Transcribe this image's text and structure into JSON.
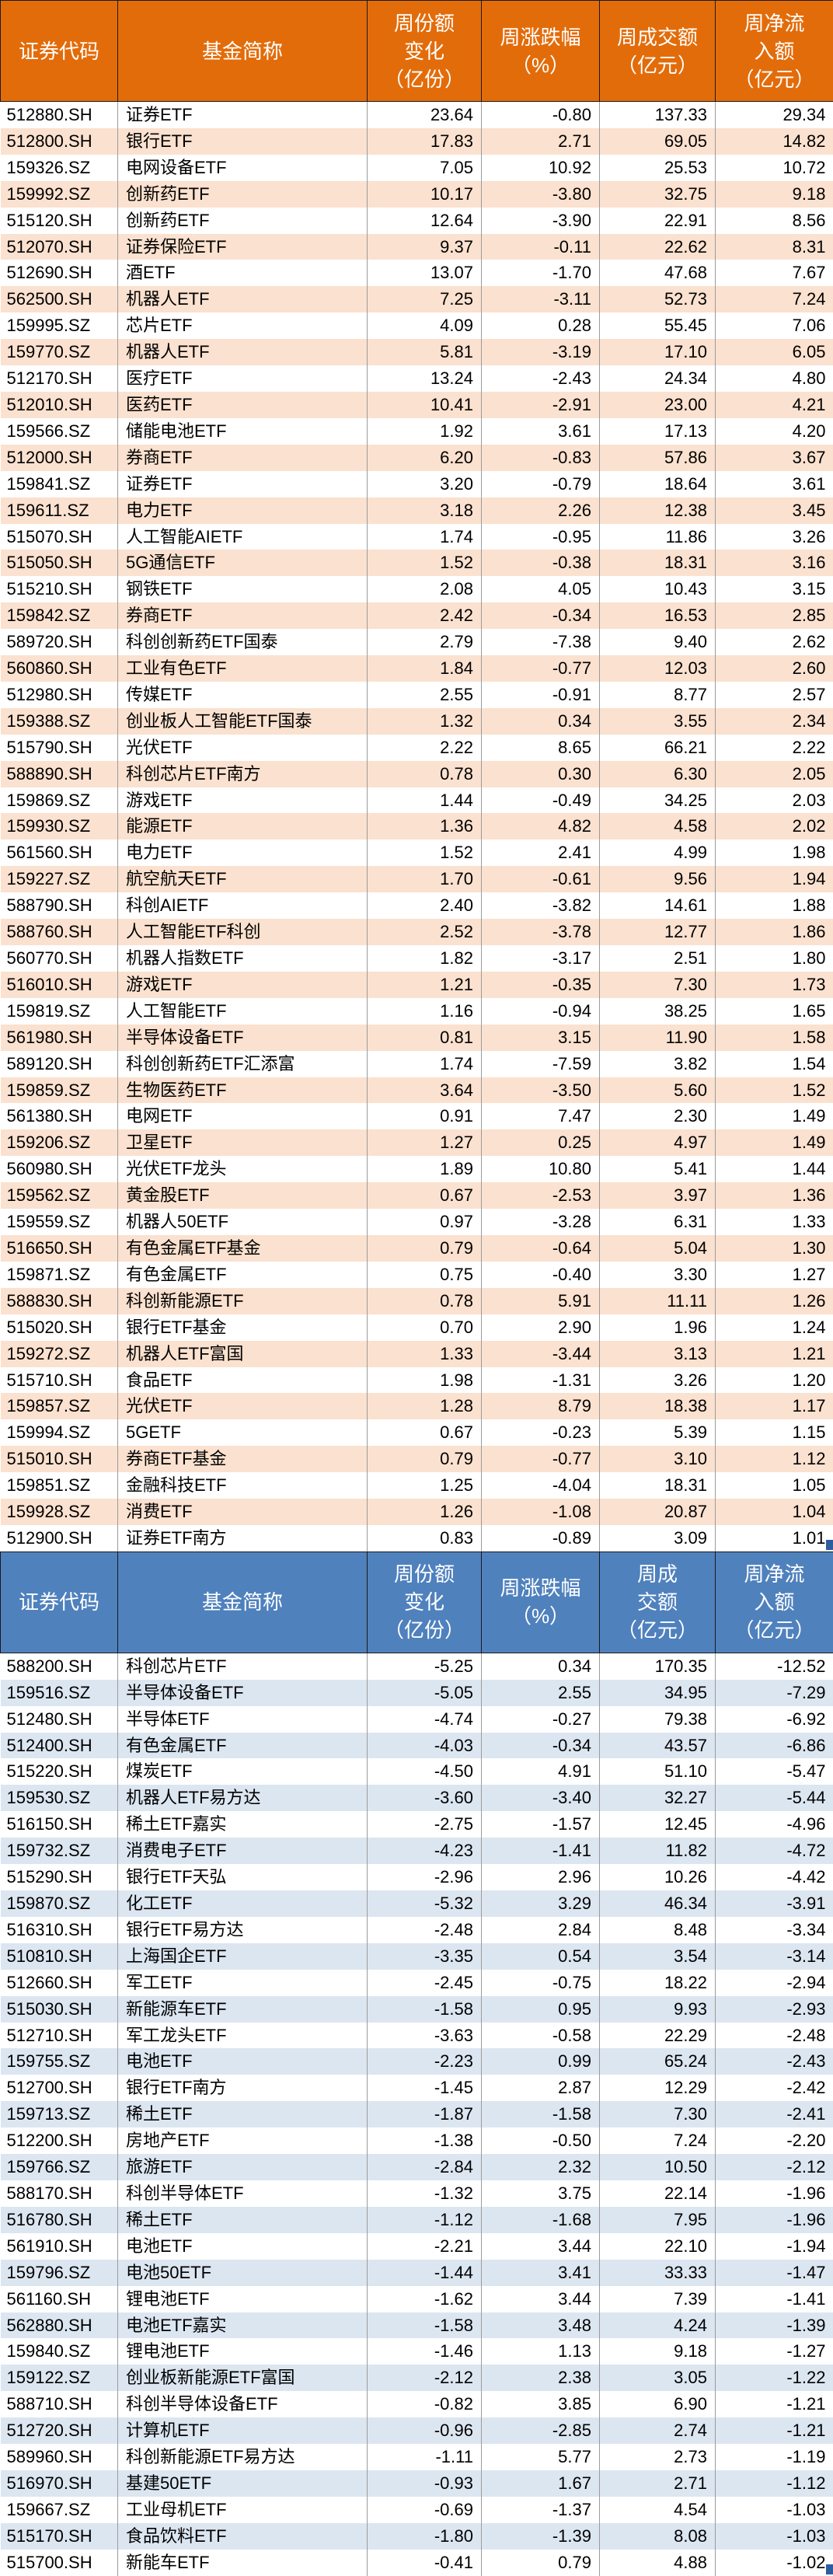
{
  "colors": {
    "inflow_header_bg": "#E36C0A",
    "inflow_row_alt_bg": "#FBE1CF",
    "outflow_header_bg": "#4F81BD",
    "outflow_row_alt_bg": "#DCE6F1",
    "row_bg": "#FFFFFF",
    "header_text": "#FFFFFF",
    "body_text": "#000000"
  },
  "chart_data": [
    {
      "type": "table",
      "name": "weekly-net-inflow-table",
      "columns": [
        "证券代码",
        "基金简称",
        "周份额变化（亿份）",
        "周涨跌幅（%）",
        "周成交额（亿元）",
        "周净流入额（亿元）"
      ],
      "column_keys": [
        "code",
        "name",
        "share-change",
        "pct-change",
        "turnover",
        "net-flow"
      ],
      "header_lines": [
        [
          "证券代码"
        ],
        [
          "基金简称"
        ],
        [
          "周份额",
          "变化",
          "（亿份）"
        ],
        [
          "周涨跌幅",
          "（%）"
        ],
        [
          "周成交额",
          "（亿元）"
        ],
        [
          "周净流",
          "入额",
          "（亿元）"
        ]
      ],
      "rows": [
        [
          "512880.SH",
          "证券ETF",
          "23.64",
          "-0.80",
          "137.33",
          "29.34"
        ],
        [
          "512800.SH",
          "银行ETF",
          "17.83",
          "2.71",
          "69.05",
          "14.82"
        ],
        [
          "159326.SZ",
          "电网设备ETF",
          "7.05",
          "10.92",
          "25.53",
          "10.72"
        ],
        [
          "159992.SZ",
          "创新药ETF",
          "10.17",
          "-3.80",
          "32.75",
          "9.18"
        ],
        [
          "515120.SH",
          "创新药ETF",
          "12.64",
          "-3.90",
          "22.91",
          "8.56"
        ],
        [
          "512070.SH",
          "证券保险ETF",
          "9.37",
          "-0.11",
          "22.62",
          "8.31"
        ],
        [
          "512690.SH",
          "酒ETF",
          "13.07",
          "-1.70",
          "47.68",
          "7.67"
        ],
        [
          "562500.SH",
          "机器人ETF",
          "7.25",
          "-3.11",
          "52.73",
          "7.24"
        ],
        [
          "159995.SZ",
          "芯片ETF",
          "4.09",
          "0.28",
          "55.45",
          "7.06"
        ],
        [
          "159770.SZ",
          "机器人ETF",
          "5.81",
          "-3.19",
          "17.10",
          "6.05"
        ],
        [
          "512170.SH",
          "医疗ETF",
          "13.24",
          "-2.43",
          "24.34",
          "4.80"
        ],
        [
          "512010.SH",
          "医药ETF",
          "10.41",
          "-2.91",
          "23.00",
          "4.21"
        ],
        [
          "159566.SZ",
          "储能电池ETF",
          "1.92",
          "3.61",
          "17.13",
          "4.20"
        ],
        [
          "512000.SH",
          "券商ETF",
          "6.20",
          "-0.83",
          "57.86",
          "3.67"
        ],
        [
          "159841.SZ",
          "证券ETF",
          "3.20",
          "-0.79",
          "18.64",
          "3.61"
        ],
        [
          "159611.SZ",
          "电力ETF",
          "3.18",
          "2.26",
          "12.38",
          "3.45"
        ],
        [
          "515070.SH",
          "人工智能AIETF",
          "1.74",
          "-0.95",
          "11.86",
          "3.26"
        ],
        [
          "515050.SH",
          "5G通信ETF",
          "1.52",
          "-0.38",
          "18.31",
          "3.16"
        ],
        [
          "515210.SH",
          "钢铁ETF",
          "2.08",
          "4.05",
          "10.43",
          "3.15"
        ],
        [
          "159842.SZ",
          "券商ETF",
          "2.42",
          "-0.34",
          "16.53",
          "2.85"
        ],
        [
          "589720.SH",
          "科创创新药ETF国泰",
          "2.79",
          "-7.38",
          "9.40",
          "2.62"
        ],
        [
          "560860.SH",
          "工业有色ETF",
          "1.84",
          "-0.77",
          "12.03",
          "2.60"
        ],
        [
          "512980.SH",
          "传媒ETF",
          "2.55",
          "-0.91",
          "8.77",
          "2.57"
        ],
        [
          "159388.SZ",
          "创业板人工智能ETF国泰",
          "1.32",
          "0.34",
          "3.55",
          "2.34"
        ],
        [
          "515790.SH",
          "光伏ETF",
          "2.22",
          "8.65",
          "66.21",
          "2.22"
        ],
        [
          "588890.SH",
          "科创芯片ETF南方",
          "0.78",
          "0.30",
          "6.30",
          "2.05"
        ],
        [
          "159869.SZ",
          "游戏ETF",
          "1.44",
          "-0.49",
          "34.25",
          "2.03"
        ],
        [
          "159930.SZ",
          "能源ETF",
          "1.36",
          "4.82",
          "4.58",
          "2.02"
        ],
        [
          "561560.SH",
          "电力ETF",
          "1.52",
          "2.41",
          "4.99",
          "1.98"
        ],
        [
          "159227.SZ",
          "航空航天ETF",
          "1.70",
          "-0.61",
          "9.56",
          "1.94"
        ],
        [
          "588790.SH",
          "科创AIETF",
          "2.40",
          "-3.82",
          "14.61",
          "1.88"
        ],
        [
          "588760.SH",
          "人工智能ETF科创",
          "2.52",
          "-3.78",
          "12.77",
          "1.86"
        ],
        [
          "560770.SH",
          "机器人指数ETF",
          "1.82",
          "-3.17",
          "2.51",
          "1.80"
        ],
        [
          "516010.SH",
          "游戏ETF",
          "1.21",
          "-0.35",
          "7.30",
          "1.73"
        ],
        [
          "159819.SZ",
          "人工智能ETF",
          "1.16",
          "-0.94",
          "38.25",
          "1.65"
        ],
        [
          "561980.SH",
          "半导体设备ETF",
          "0.81",
          "3.15",
          "11.90",
          "1.58"
        ],
        [
          "589120.SH",
          "科创创新药ETF汇添富",
          "1.74",
          "-7.59",
          "3.82",
          "1.54"
        ],
        [
          "159859.SZ",
          "生物医药ETF",
          "3.64",
          "-3.50",
          "5.60",
          "1.52"
        ],
        [
          "561380.SH",
          "电网ETF",
          "0.91",
          "7.47",
          "2.30",
          "1.49"
        ],
        [
          "159206.SZ",
          "卫星ETF",
          "1.27",
          "0.25",
          "4.97",
          "1.49"
        ],
        [
          "560980.SH",
          "光伏ETF龙头",
          "1.89",
          "10.80",
          "5.41",
          "1.44"
        ],
        [
          "159562.SZ",
          "黄金股ETF",
          "0.67",
          "-2.53",
          "3.97",
          "1.36"
        ],
        [
          "159559.SZ",
          "机器人50ETF",
          "0.97",
          "-3.28",
          "6.31",
          "1.33"
        ],
        [
          "516650.SH",
          "有色金属ETF基金",
          "0.79",
          "-0.64",
          "5.04",
          "1.30"
        ],
        [
          "159871.SZ",
          "有色金属ETF",
          "0.75",
          "-0.40",
          "3.30",
          "1.27"
        ],
        [
          "588830.SH",
          "科创新能源ETF",
          "0.78",
          "5.91",
          "11.11",
          "1.26"
        ],
        [
          "515020.SH",
          "银行ETF基金",
          "0.70",
          "2.90",
          "1.96",
          "1.24"
        ],
        [
          "159272.SZ",
          "机器人ETF富国",
          "1.33",
          "-3.44",
          "3.13",
          "1.21"
        ],
        [
          "515710.SH",
          "食品ETF",
          "1.98",
          "-1.31",
          "3.26",
          "1.20"
        ],
        [
          "159857.SZ",
          "光伏ETF",
          "1.28",
          "8.79",
          "18.38",
          "1.17"
        ],
        [
          "159994.SZ",
          "5GETF",
          "0.67",
          "-0.23",
          "5.39",
          "1.15"
        ],
        [
          "515010.SH",
          "券商ETF基金",
          "0.79",
          "-0.77",
          "3.10",
          "1.12"
        ],
        [
          "159851.SZ",
          "金融科技ETF",
          "1.25",
          "-4.04",
          "18.31",
          "1.05"
        ],
        [
          "159928.SZ",
          "消费ETF",
          "1.26",
          "-1.08",
          "20.87",
          "1.04"
        ],
        [
          "512900.SH",
          "证券ETF南方",
          "0.83",
          "-0.89",
          "3.09",
          "1.01"
        ]
      ]
    },
    {
      "type": "table",
      "name": "weekly-net-outflow-table",
      "columns": [
        "证券代码",
        "基金简称",
        "周份额变化（亿份）",
        "周涨跌幅（%）",
        "周成交额（亿元）",
        "周净流入额（亿元）"
      ],
      "column_keys": [
        "code",
        "name",
        "share-change",
        "pct-change",
        "turnover",
        "net-flow"
      ],
      "header_lines": [
        [
          "证券代码"
        ],
        [
          "基金简称"
        ],
        [
          "周份额",
          "变化",
          "（亿份）"
        ],
        [
          "周涨跌幅",
          "（%）"
        ],
        [
          "周成",
          "交额",
          "（亿元）"
        ],
        [
          "周净流",
          "入额",
          "（亿元）"
        ]
      ],
      "rows": [
        [
          "588200.SH",
          "科创芯片ETF",
          "-5.25",
          "0.34",
          "170.35",
          "-12.52"
        ],
        [
          "159516.SZ",
          "半导体设备ETF",
          "-5.05",
          "2.55",
          "34.95",
          "-7.29"
        ],
        [
          "512480.SH",
          "半导体ETF",
          "-4.74",
          "-0.27",
          "79.38",
          "-6.92"
        ],
        [
          "512400.SH",
          "有色金属ETF",
          "-4.03",
          "-0.34",
          "43.57",
          "-6.86"
        ],
        [
          "515220.SH",
          "煤炭ETF",
          "-4.50",
          "4.91",
          "51.10",
          "-5.47"
        ],
        [
          "159530.SZ",
          "机器人ETF易方达",
          "-3.60",
          "-3.40",
          "32.27",
          "-5.44"
        ],
        [
          "516150.SH",
          "稀土ETF嘉实",
          "-2.75",
          "-1.57",
          "12.45",
          "-4.96"
        ],
        [
          "159732.SZ",
          "消费电子ETF",
          "-4.23",
          "-1.41",
          "11.82",
          "-4.72"
        ],
        [
          "515290.SH",
          "银行ETF天弘",
          "-2.96",
          "2.96",
          "10.26",
          "-4.42"
        ],
        [
          "159870.SZ",
          "化工ETF",
          "-5.32",
          "3.29",
          "46.34",
          "-3.91"
        ],
        [
          "516310.SH",
          "银行ETF易方达",
          "-2.48",
          "2.84",
          "8.48",
          "-3.34"
        ],
        [
          "510810.SH",
          "上海国企ETF",
          "-3.35",
          "0.54",
          "3.54",
          "-3.14"
        ],
        [
          "512660.SH",
          "军工ETF",
          "-2.45",
          "-0.75",
          "18.22",
          "-2.94"
        ],
        [
          "515030.SH",
          "新能源车ETF",
          "-1.58",
          "0.95",
          "9.93",
          "-2.93"
        ],
        [
          "512710.SH",
          "军工龙头ETF",
          "-3.63",
          "-0.58",
          "22.29",
          "-2.48"
        ],
        [
          "159755.SZ",
          "电池ETF",
          "-2.23",
          "0.99",
          "65.24",
          "-2.43"
        ],
        [
          "512700.SH",
          "银行ETF南方",
          "-1.45",
          "2.87",
          "12.29",
          "-2.42"
        ],
        [
          "159713.SZ",
          "稀土ETF",
          "-1.87",
          "-1.58",
          "7.30",
          "-2.41"
        ],
        [
          "512200.SH",
          "房地产ETF",
          "-1.38",
          "-0.50",
          "7.24",
          "-2.20"
        ],
        [
          "159766.SZ",
          "旅游ETF",
          "-2.84",
          "2.32",
          "10.50",
          "-2.12"
        ],
        [
          "588170.SH",
          "科创半导体ETF",
          "-1.32",
          "3.75",
          "22.14",
          "-1.96"
        ],
        [
          "516780.SH",
          "稀土ETF",
          "-1.12",
          "-1.68",
          "7.95",
          "-1.96"
        ],
        [
          "561910.SH",
          "电池ETF",
          "-2.21",
          "3.44",
          "22.10",
          "-1.94"
        ],
        [
          "159796.SZ",
          "电池50ETF",
          "-1.44",
          "3.41",
          "33.33",
          "-1.47"
        ],
        [
          "561160.SH",
          "锂电池ETF",
          "-1.62",
          "3.44",
          "7.39",
          "-1.41"
        ],
        [
          "562880.SH",
          "电池ETF嘉实",
          "-1.58",
          "3.48",
          "4.24",
          "-1.39"
        ],
        [
          "159840.SZ",
          "锂电池ETF",
          "-1.46",
          "1.13",
          "9.18",
          "-1.27"
        ],
        [
          "159122.SZ",
          "创业板新能源ETF富国",
          "-2.12",
          "2.38",
          "3.05",
          "-1.22"
        ],
        [
          "588710.SH",
          "科创半导体设备ETF",
          "-0.82",
          "3.85",
          "6.90",
          "-1.21"
        ],
        [
          "512720.SH",
          "计算机ETF",
          "-0.96",
          "-2.85",
          "2.74",
          "-1.21"
        ],
        [
          "589960.SH",
          "科创新能源ETF易方达",
          "-1.11",
          "5.77",
          "2.73",
          "-1.19"
        ],
        [
          "516970.SH",
          "基建50ETF",
          "-0.93",
          "1.67",
          "2.71",
          "-1.12"
        ],
        [
          "159667.SZ",
          "工业母机ETF",
          "-0.69",
          "-1.37",
          "4.54",
          "-1.03"
        ],
        [
          "515170.SH",
          "食品饮料ETF",
          "-1.80",
          "-1.39",
          "8.08",
          "-1.03"
        ],
        [
          "515700.SH",
          "新能车ETF",
          "-0.41",
          "0.79",
          "4.88",
          "-1.02"
        ]
      ]
    }
  ]
}
